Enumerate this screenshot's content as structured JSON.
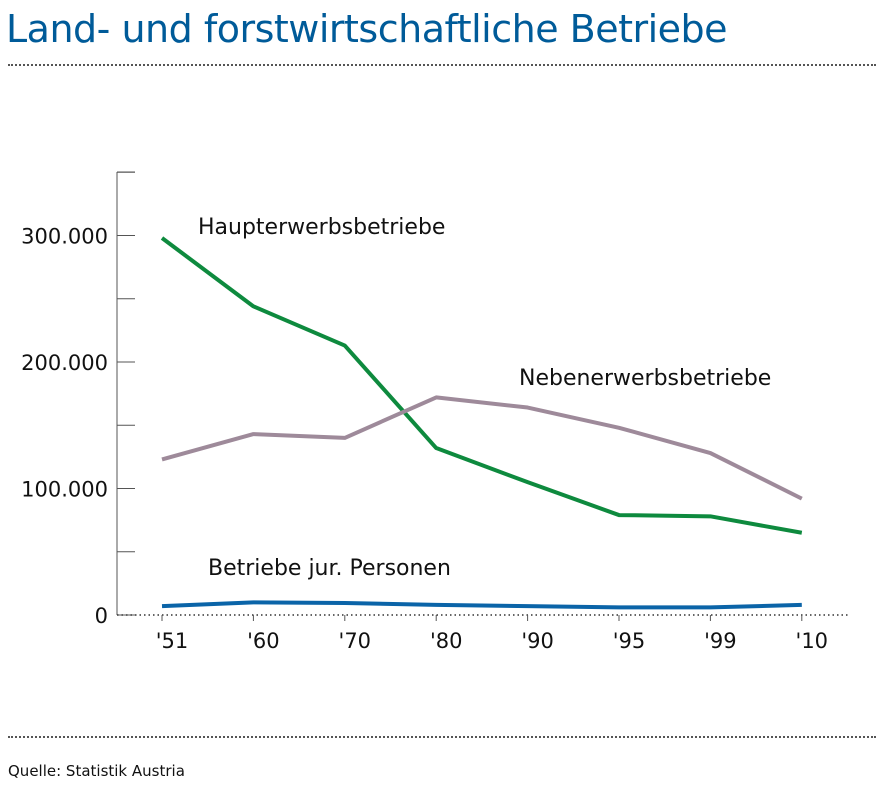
{
  "header": {
    "title": "Land- und forstwirtschaftliche Betriebe"
  },
  "footer": {
    "source": "Quelle: Statistik Austria"
  },
  "colors": {
    "title": "#005B99",
    "haupterwerb": "#0E8A3E",
    "nebenerwerb": "#9E8A9A",
    "juristisch": "#0B64A8"
  },
  "chart_data": {
    "type": "line",
    "title": "Land- und forstwirtschaftliche Betriebe",
    "xlabel": "",
    "ylabel": "",
    "categories": [
      "'51",
      "'60",
      "'70",
      "'80",
      "'90",
      "'95",
      "'99",
      "'10"
    ],
    "ylim": [
      0,
      350000
    ],
    "yticks": [
      0,
      100000,
      200000,
      300000
    ],
    "ytick_labels": [
      "0",
      "100.000",
      "200.000",
      "300.000"
    ],
    "grid": false,
    "legend": "inline labels",
    "series": [
      {
        "name": "Haupterwerbsbetriebe",
        "color": "#0E8A3E",
        "values": [
          298000,
          244000,
          213000,
          132000,
          105000,
          79000,
          78000,
          65000
        ]
      },
      {
        "name": "Nebenerwerbsbetriebe",
        "color": "#9E8A9A",
        "values": [
          123000,
          143000,
          140000,
          172000,
          164000,
          148000,
          128000,
          92000
        ]
      },
      {
        "name": "Betriebe jur. Personen",
        "color": "#0B64A8",
        "values": [
          7000,
          10000,
          9500,
          8000,
          7000,
          6000,
          6000,
          8000
        ]
      }
    ]
  }
}
